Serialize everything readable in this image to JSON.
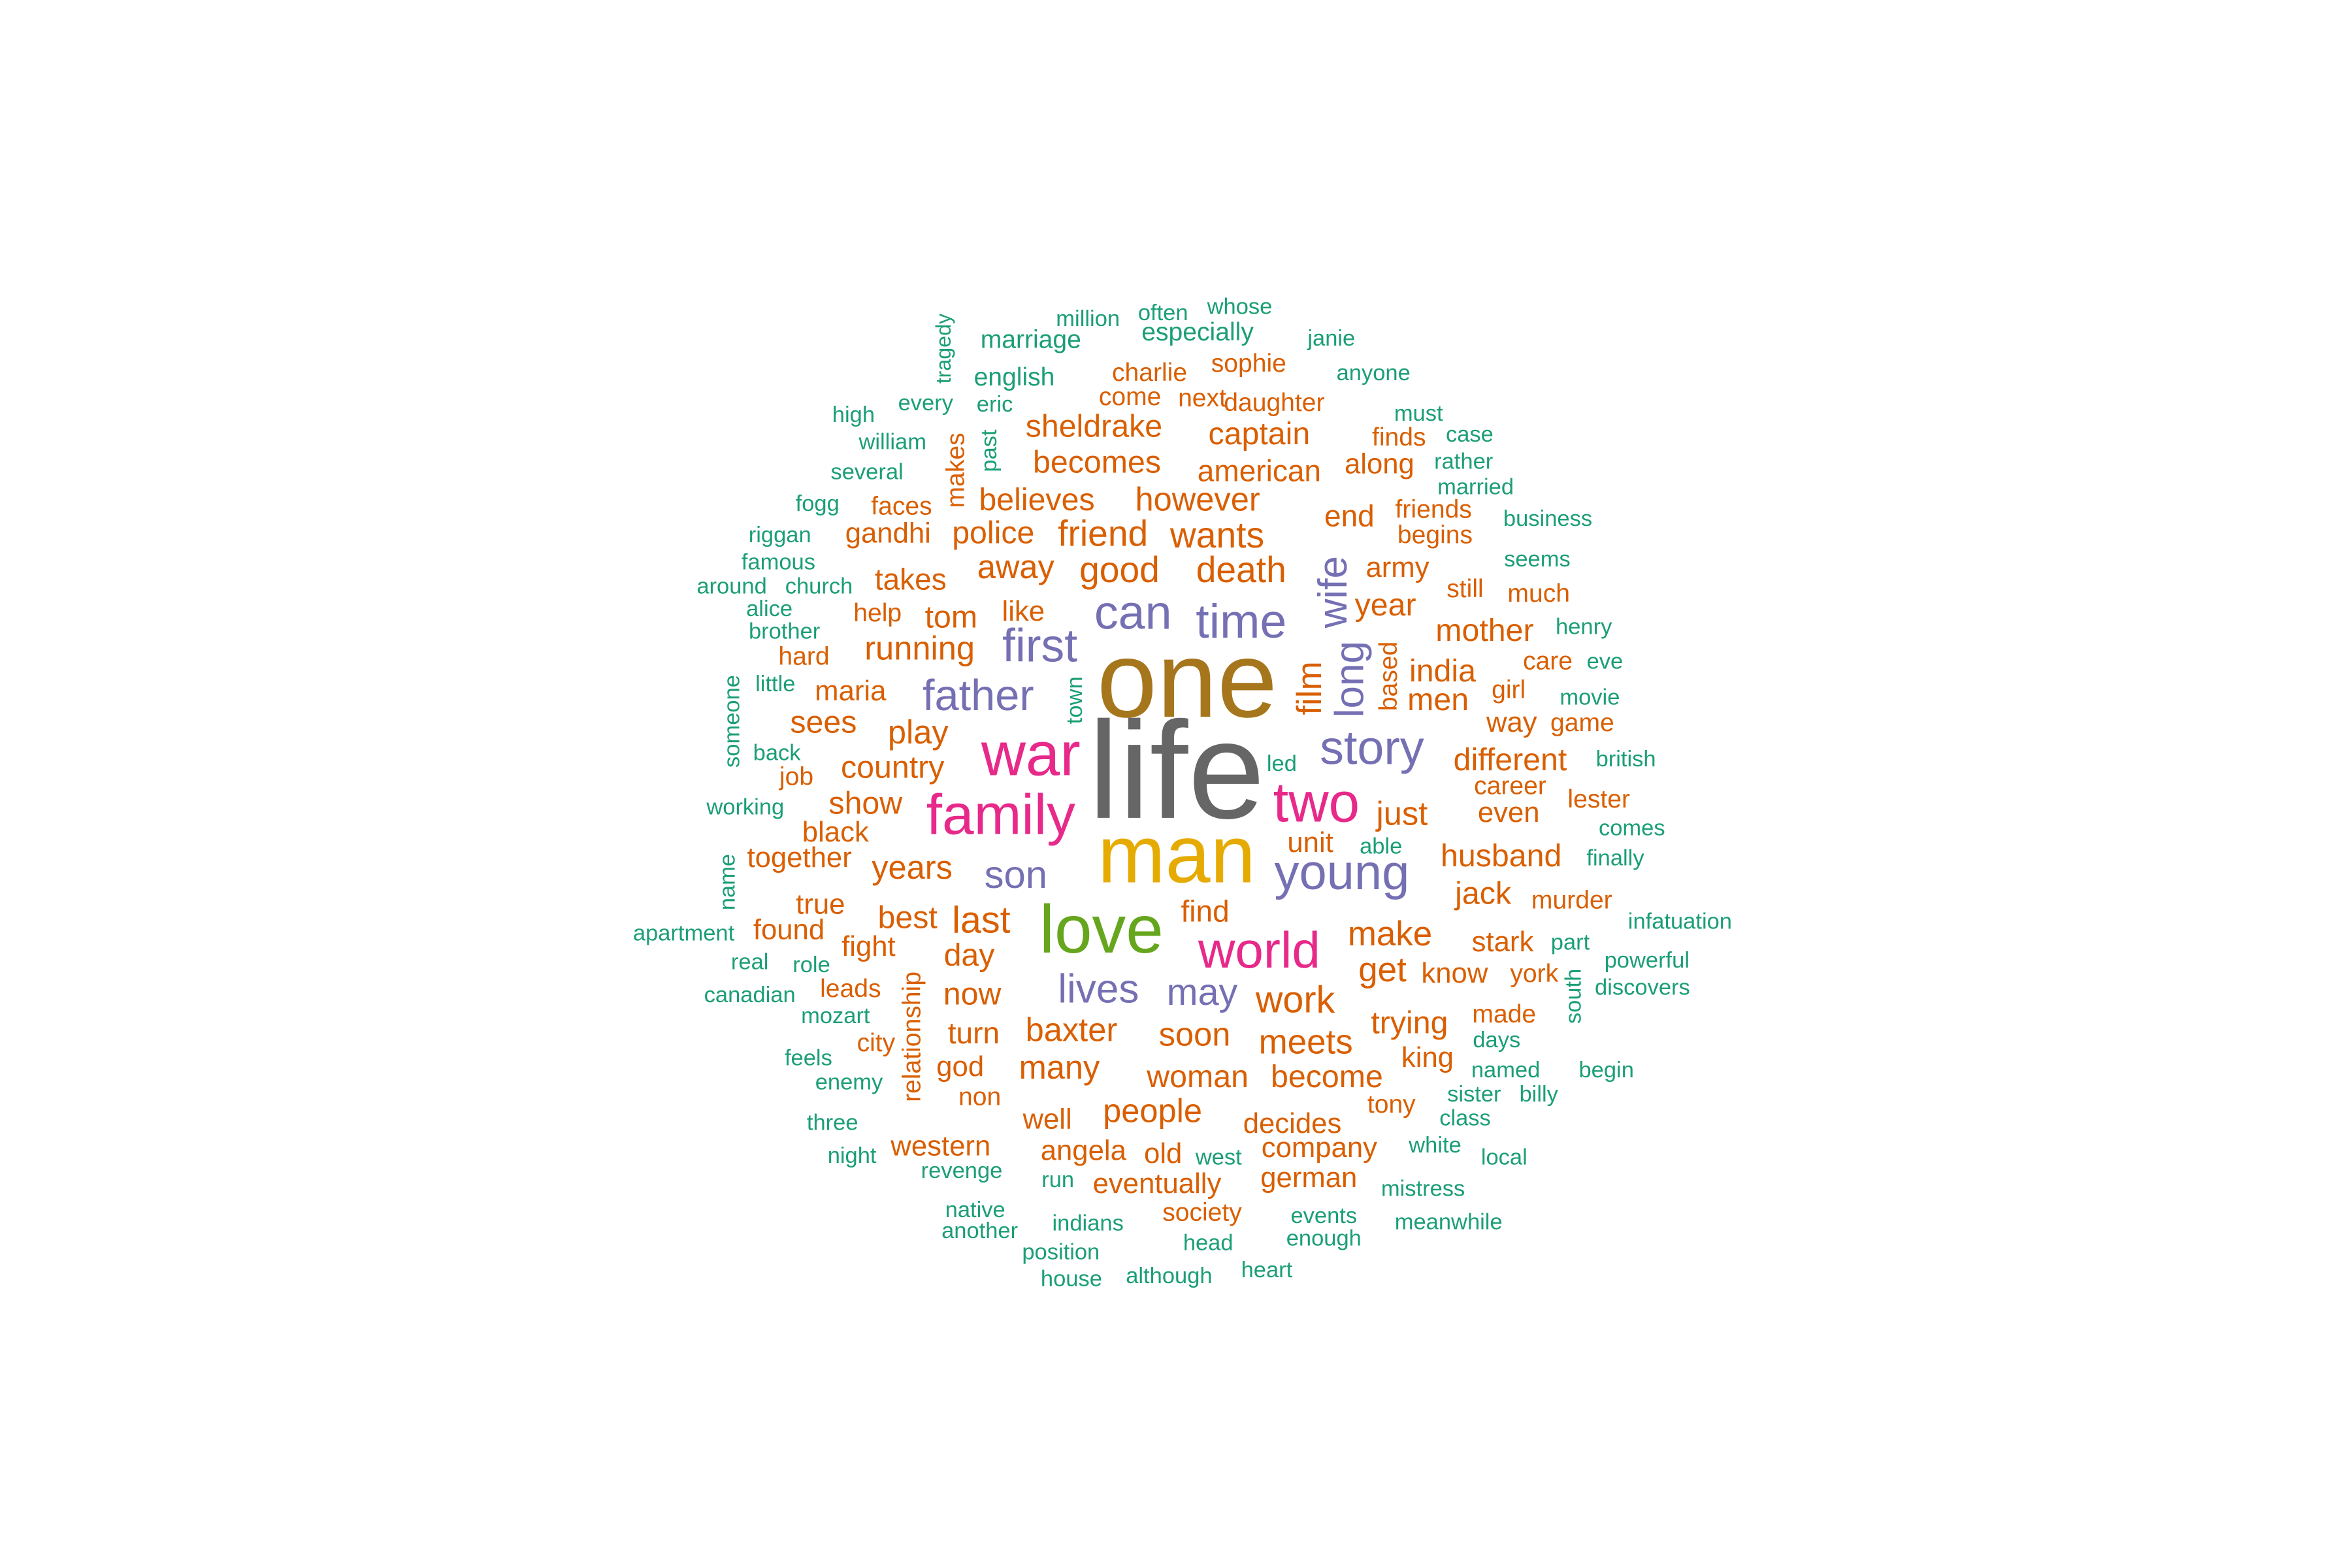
{
  "palette": {
    "gray": "#666666",
    "olive": "#a6761d",
    "gold": "#e6ab02",
    "green": "#66a61e",
    "pink": "#e7298a",
    "purple": "#7570b3",
    "orange": "#d95f02",
    "teal": "#1b9e77"
  },
  "words": [
    {
      "text": "life",
      "color": "gray"
    },
    {
      "text": "one",
      "color": "olive"
    },
    {
      "text": "man",
      "color": "gold"
    },
    {
      "text": "love",
      "color": "green"
    },
    {
      "text": "war",
      "color": "pink"
    },
    {
      "text": "family",
      "color": "pink"
    },
    {
      "text": "world",
      "color": "pink"
    },
    {
      "text": "two",
      "color": "pink"
    },
    {
      "text": "can",
      "color": "purple"
    },
    {
      "text": "time",
      "color": "purple"
    },
    {
      "text": "first",
      "color": "purple"
    },
    {
      "text": "father",
      "color": "purple"
    },
    {
      "text": "story",
      "color": "purple"
    },
    {
      "text": "young",
      "color": "purple"
    },
    {
      "text": "son",
      "color": "purple"
    },
    {
      "text": "lives",
      "color": "purple"
    },
    {
      "text": "may",
      "color": "purple"
    },
    {
      "text": "wife",
      "color": "purple"
    },
    {
      "text": "long",
      "color": "purple"
    },
    {
      "text": "film",
      "color": "orange"
    },
    {
      "text": "good",
      "color": "orange"
    },
    {
      "text": "death",
      "color": "orange"
    },
    {
      "text": "friend",
      "color": "orange"
    },
    {
      "text": "wants",
      "color": "orange"
    },
    {
      "text": "away",
      "color": "orange"
    },
    {
      "text": "police",
      "color": "orange"
    },
    {
      "text": "believes",
      "color": "orange"
    },
    {
      "text": "however",
      "color": "orange"
    },
    {
      "text": "becomes",
      "color": "orange"
    },
    {
      "text": "american",
      "color": "orange"
    },
    {
      "text": "sheldrake",
      "color": "orange"
    },
    {
      "text": "captain",
      "color": "orange"
    },
    {
      "text": "charlie",
      "color": "orange"
    },
    {
      "text": "sophie",
      "color": "orange"
    },
    {
      "text": "come",
      "color": "orange"
    },
    {
      "text": "next",
      "color": "orange"
    },
    {
      "text": "daughter",
      "color": "orange"
    },
    {
      "text": "finds",
      "color": "orange"
    },
    {
      "text": "along",
      "color": "orange"
    },
    {
      "text": "end",
      "color": "orange"
    },
    {
      "text": "friends",
      "color": "orange"
    },
    {
      "text": "begins",
      "color": "orange"
    },
    {
      "text": "army",
      "color": "orange"
    },
    {
      "text": "year",
      "color": "orange"
    },
    {
      "text": "still",
      "color": "orange"
    },
    {
      "text": "much",
      "color": "orange"
    },
    {
      "text": "mother",
      "color": "orange"
    },
    {
      "text": "india",
      "color": "orange"
    },
    {
      "text": "based",
      "color": "orange"
    },
    {
      "text": "men",
      "color": "orange"
    },
    {
      "text": "care",
      "color": "orange"
    },
    {
      "text": "girl",
      "color": "orange"
    },
    {
      "text": "way",
      "color": "orange"
    },
    {
      "text": "game",
      "color": "orange"
    },
    {
      "text": "different",
      "color": "orange"
    },
    {
      "text": "career",
      "color": "orange"
    },
    {
      "text": "lester",
      "color": "orange"
    },
    {
      "text": "just",
      "color": "orange"
    },
    {
      "text": "even",
      "color": "orange"
    },
    {
      "text": "husband",
      "color": "orange"
    },
    {
      "text": "jack",
      "color": "orange"
    },
    {
      "text": "murder",
      "color": "orange"
    },
    {
      "text": "make",
      "color": "orange"
    },
    {
      "text": "stark",
      "color": "orange"
    },
    {
      "text": "get",
      "color": "orange"
    },
    {
      "text": "know",
      "color": "orange"
    },
    {
      "text": "york",
      "color": "orange"
    },
    {
      "text": "made",
      "color": "orange"
    },
    {
      "text": "work",
      "color": "orange"
    },
    {
      "text": "trying",
      "color": "orange"
    },
    {
      "text": "meets",
      "color": "orange"
    },
    {
      "text": "king",
      "color": "orange"
    },
    {
      "text": "become",
      "color": "orange"
    },
    {
      "text": "woman",
      "color": "orange"
    },
    {
      "text": "tony",
      "color": "orange"
    },
    {
      "text": "soon",
      "color": "orange"
    },
    {
      "text": "baxter",
      "color": "orange"
    },
    {
      "text": "many",
      "color": "orange"
    },
    {
      "text": "people",
      "color": "orange"
    },
    {
      "text": "decides",
      "color": "orange"
    },
    {
      "text": "company",
      "color": "orange"
    },
    {
      "text": "german",
      "color": "orange"
    },
    {
      "text": "old",
      "color": "orange"
    },
    {
      "text": "angela",
      "color": "orange"
    },
    {
      "text": "eventually",
      "color": "orange"
    },
    {
      "text": "society",
      "color": "orange"
    },
    {
      "text": "well",
      "color": "orange"
    },
    {
      "text": "find",
      "color": "orange"
    },
    {
      "text": "unit",
      "color": "orange"
    },
    {
      "text": "last",
      "color": "orange"
    },
    {
      "text": "day",
      "color": "orange"
    },
    {
      "text": "now",
      "color": "orange"
    },
    {
      "text": "turn",
      "color": "orange"
    },
    {
      "text": "god",
      "color": "orange"
    },
    {
      "text": "non",
      "color": "orange"
    },
    {
      "text": "western",
      "color": "orange"
    },
    {
      "text": "best",
      "color": "orange"
    },
    {
      "text": "fight",
      "color": "orange"
    },
    {
      "text": "leads",
      "color": "orange"
    },
    {
      "text": "city",
      "color": "orange"
    },
    {
      "text": "relationship",
      "color": "orange"
    },
    {
      "text": "years",
      "color": "orange"
    },
    {
      "text": "show",
      "color": "orange"
    },
    {
      "text": "country",
      "color": "orange"
    },
    {
      "text": "play",
      "color": "orange"
    },
    {
      "text": "sees",
      "color": "orange"
    },
    {
      "text": "maria",
      "color": "orange"
    },
    {
      "text": "running",
      "color": "orange"
    },
    {
      "text": "tom",
      "color": "orange"
    },
    {
      "text": "like",
      "color": "orange"
    },
    {
      "text": "help",
      "color": "orange"
    },
    {
      "text": "hard",
      "color": "orange"
    },
    {
      "text": "takes",
      "color": "orange"
    },
    {
      "text": "gandhi",
      "color": "orange"
    },
    {
      "text": "faces",
      "color": "orange"
    },
    {
      "text": "makes",
      "color": "orange"
    },
    {
      "text": "job",
      "color": "orange"
    },
    {
      "text": "black",
      "color": "orange"
    },
    {
      "text": "together",
      "color": "orange"
    },
    {
      "text": "true",
      "color": "orange"
    },
    {
      "text": "found",
      "color": "orange"
    },
    {
      "text": "tragedy",
      "color": "teal"
    },
    {
      "text": "million",
      "color": "teal"
    },
    {
      "text": "often",
      "color": "teal"
    },
    {
      "text": "whose",
      "color": "teal"
    },
    {
      "text": "marriage",
      "color": "teal"
    },
    {
      "text": "especially",
      "color": "teal"
    },
    {
      "text": "janie",
      "color": "teal"
    },
    {
      "text": "english",
      "color": "teal"
    },
    {
      "text": "anyone",
      "color": "teal"
    },
    {
      "text": "high",
      "color": "teal"
    },
    {
      "text": "every",
      "color": "teal"
    },
    {
      "text": "eric",
      "color": "teal"
    },
    {
      "text": "must",
      "color": "teal"
    },
    {
      "text": "case",
      "color": "teal"
    },
    {
      "text": "william",
      "color": "teal"
    },
    {
      "text": "past",
      "color": "teal"
    },
    {
      "text": "rather",
      "color": "teal"
    },
    {
      "text": "several",
      "color": "teal"
    },
    {
      "text": "married",
      "color": "teal"
    },
    {
      "text": "fogg",
      "color": "teal"
    },
    {
      "text": "business",
      "color": "teal"
    },
    {
      "text": "riggan",
      "color": "teal"
    },
    {
      "text": "famous",
      "color": "teal"
    },
    {
      "text": "seems",
      "color": "teal"
    },
    {
      "text": "around",
      "color": "teal"
    },
    {
      "text": "church",
      "color": "teal"
    },
    {
      "text": "alice",
      "color": "teal"
    },
    {
      "text": "brother",
      "color": "teal"
    },
    {
      "text": "henry",
      "color": "teal"
    },
    {
      "text": "eve",
      "color": "teal"
    },
    {
      "text": "someone",
      "color": "teal"
    },
    {
      "text": "little",
      "color": "teal"
    },
    {
      "text": "town",
      "color": "teal"
    },
    {
      "text": "movie",
      "color": "teal"
    },
    {
      "text": "back",
      "color": "teal"
    },
    {
      "text": "british",
      "color": "teal"
    },
    {
      "text": "led",
      "color": "teal"
    },
    {
      "text": "working",
      "color": "teal"
    },
    {
      "text": "comes",
      "color": "teal"
    },
    {
      "text": "able",
      "color": "teal"
    },
    {
      "text": "name",
      "color": "teal"
    },
    {
      "text": "finally",
      "color": "teal"
    },
    {
      "text": "infatuation",
      "color": "teal"
    },
    {
      "text": "apartment",
      "color": "teal"
    },
    {
      "text": "part",
      "color": "teal"
    },
    {
      "text": "real",
      "color": "teal"
    },
    {
      "text": "role",
      "color": "teal"
    },
    {
      "text": "powerful",
      "color": "teal"
    },
    {
      "text": "canadian",
      "color": "teal"
    },
    {
      "text": "south",
      "color": "teal"
    },
    {
      "text": "discovers",
      "color": "teal"
    },
    {
      "text": "mozart",
      "color": "teal"
    },
    {
      "text": "days",
      "color": "teal"
    },
    {
      "text": "feels",
      "color": "teal"
    },
    {
      "text": "named",
      "color": "teal"
    },
    {
      "text": "begin",
      "color": "teal"
    },
    {
      "text": "enemy",
      "color": "teal"
    },
    {
      "text": "sister",
      "color": "teal"
    },
    {
      "text": "billy",
      "color": "teal"
    },
    {
      "text": "three",
      "color": "teal"
    },
    {
      "text": "class",
      "color": "teal"
    },
    {
      "text": "night",
      "color": "teal"
    },
    {
      "text": "west",
      "color": "teal"
    },
    {
      "text": "white",
      "color": "teal"
    },
    {
      "text": "local",
      "color": "teal"
    },
    {
      "text": "revenge",
      "color": "teal"
    },
    {
      "text": "run",
      "color": "teal"
    },
    {
      "text": "mistress",
      "color": "teal"
    },
    {
      "text": "native",
      "color": "teal"
    },
    {
      "text": "indians",
      "color": "teal"
    },
    {
      "text": "events",
      "color": "teal"
    },
    {
      "text": "another",
      "color": "teal"
    },
    {
      "text": "head",
      "color": "teal"
    },
    {
      "text": "enough",
      "color": "teal"
    },
    {
      "text": "meanwhile",
      "color": "teal"
    },
    {
      "text": "position",
      "color": "teal"
    },
    {
      "text": "house",
      "color": "teal"
    },
    {
      "text": "although",
      "color": "teal"
    },
    {
      "text": "heart",
      "color": "teal"
    }
  ]
}
